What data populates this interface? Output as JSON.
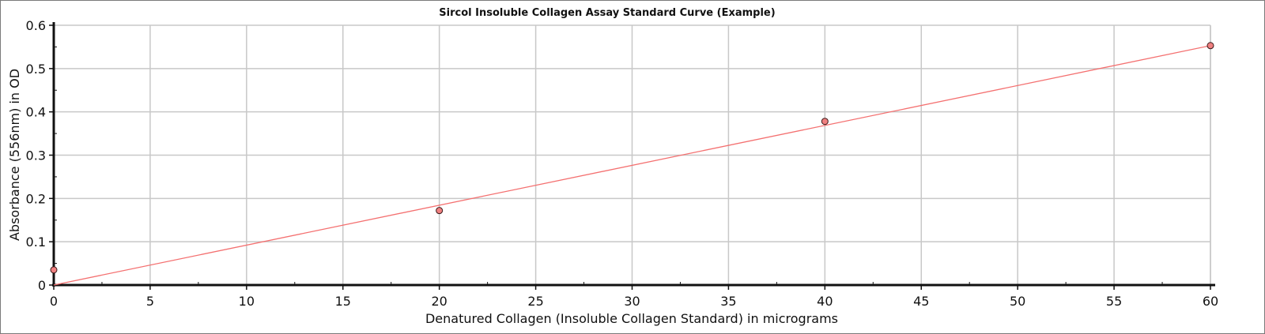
{
  "chart_data": {
    "type": "scatter",
    "title": "Sircol Insoluble Collagen Assay Standard Curve (Example)",
    "xlabel": "Denatured Collagen (Insoluble Collagen Standard) in micrograms",
    "ylabel": "Absorbance (556nm) in OD",
    "xlim": [
      0,
      60
    ],
    "ylim": [
      0,
      0.6
    ],
    "x_ticks": [
      0,
      5,
      10,
      15,
      20,
      25,
      30,
      35,
      40,
      45,
      50,
      55,
      60
    ],
    "x_tick_labels": [
      "0",
      "5",
      "10",
      "15",
      "20",
      "25",
      "30",
      "35",
      "40",
      "45",
      "50",
      "55",
      "60"
    ],
    "y_ticks": [
      0,
      0.1,
      0.2,
      0.3,
      0.4,
      0.5,
      0.6
    ],
    "y_tick_labels": [
      "0",
      "0.1",
      "0.2",
      "0.3",
      "0.4",
      "0.5",
      "0.6"
    ],
    "grid": true,
    "series": [
      {
        "points": [
          {
            "x": 0,
            "y": 0.035
          },
          {
            "x": 20,
            "y": 0.172
          },
          {
            "x": 40,
            "y": 0.378
          },
          {
            "x": 60,
            "y": 0.553
          }
        ],
        "marker_color": "#f08080",
        "marker_edge": "#3a1a1a"
      }
    ],
    "trendline": {
      "x": [
        0,
        60
      ],
      "y": [
        0,
        0.553
      ],
      "color": "#f47070"
    },
    "grid_color": "#c8c8c8",
    "axis_color": "#111111"
  }
}
